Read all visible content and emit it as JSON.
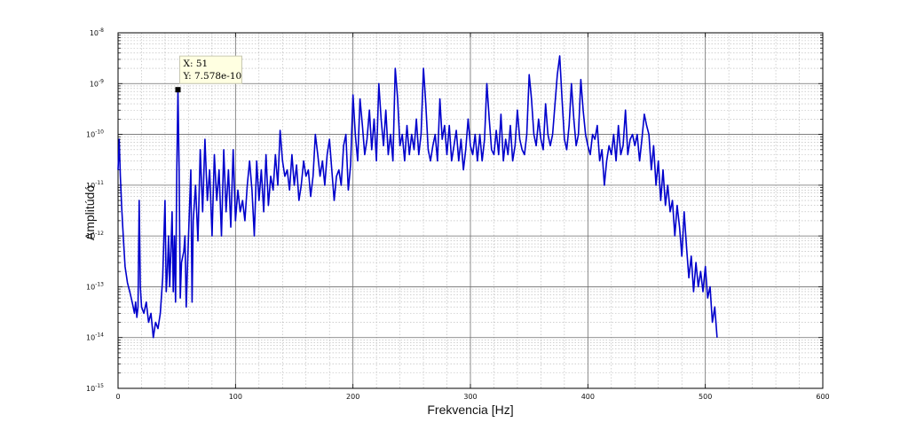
{
  "chart_data": {
    "type": "line",
    "xlabel": "Frekvencia [Hz]",
    "ylabel": "Amplitúdó",
    "xlim": [
      0,
      600
    ],
    "ylim": [
      1e-15,
      1e-08
    ],
    "yscale": "log",
    "grid": true,
    "minor_grid": true,
    "x_ticks": [
      "0",
      "100",
      "200",
      "300",
      "400",
      "500",
      "600"
    ],
    "y_ticks": [
      {
        "base": "10",
        "exp": "-15"
      },
      {
        "base": "10",
        "exp": "-14"
      },
      {
        "base": "10",
        "exp": "-13"
      },
      {
        "base": "10",
        "exp": "-12"
      },
      {
        "base": "10",
        "exp": "-11"
      },
      {
        "base": "10",
        "exp": "-10"
      },
      {
        "base": "10",
        "exp": "-9"
      },
      {
        "base": "10",
        "exp": "-8"
      }
    ],
    "series": [
      {
        "color": "#0000cc",
        "points": [
          [
            0,
            2e-11
          ],
          [
            1,
            8e-11
          ],
          [
            2,
            1.5e-11
          ],
          [
            3,
            4e-12
          ],
          [
            4,
            1.5e-12
          ],
          [
            5,
            6e-13
          ],
          [
            6,
            2.5e-13
          ],
          [
            8,
            1.2e-13
          ],
          [
            10,
            8e-14
          ],
          [
            12,
            5e-14
          ],
          [
            14,
            3e-14
          ],
          [
            15,
            5e-14
          ],
          [
            16,
            2.5e-14
          ],
          [
            17,
            4e-14
          ],
          [
            18,
            5e-12
          ],
          [
            19,
            1e-13
          ],
          [
            20,
            4e-14
          ],
          [
            22,
            3e-14
          ],
          [
            24,
            5e-14
          ],
          [
            26,
            2e-14
          ],
          [
            28,
            3e-14
          ],
          [
            30,
            1e-14
          ],
          [
            32,
            2e-14
          ],
          [
            34,
            1.5e-14
          ],
          [
            36,
            3e-14
          ],
          [
            38,
            1.5e-13
          ],
          [
            40,
            5e-12
          ],
          [
            41,
            8e-14
          ],
          [
            42,
            2e-13
          ],
          [
            43,
            1e-12
          ],
          [
            44,
            1e-13
          ],
          [
            46,
            3e-12
          ],
          [
            47,
            8e-14
          ],
          [
            48,
            1e-12
          ],
          [
            49,
            5e-14
          ],
          [
            50,
            2e-11
          ],
          [
            51,
            7.578e-10
          ],
          [
            52,
            2e-11
          ],
          [
            53,
            6e-14
          ],
          [
            54,
            3e-13
          ],
          [
            56,
            5e-13
          ],
          [
            57,
            1e-12
          ],
          [
            58,
            4e-14
          ],
          [
            60,
            1e-12
          ],
          [
            62,
            2e-11
          ],
          [
            63,
            5e-14
          ],
          [
            64,
            2e-12
          ],
          [
            66,
            1e-11
          ],
          [
            68,
            8e-13
          ],
          [
            70,
            5e-11
          ],
          [
            72,
            3e-12
          ],
          [
            74,
            8e-11
          ],
          [
            76,
            5e-12
          ],
          [
            78,
            2e-11
          ],
          [
            80,
            1e-12
          ],
          [
            82,
            4e-11
          ],
          [
            84,
            5e-12
          ],
          [
            86,
            2e-11
          ],
          [
            88,
            1e-12
          ],
          [
            90,
            5e-11
          ],
          [
            92,
            3e-12
          ],
          [
            94,
            2e-11
          ],
          [
            96,
            1.5e-12
          ],
          [
            98,
            5e-11
          ],
          [
            100,
            2e-12
          ],
          [
            102,
            8e-12
          ],
          [
            104,
            3e-12
          ],
          [
            106,
            5e-12
          ],
          [
            108,
            2e-12
          ],
          [
            110,
            1e-11
          ],
          [
            112,
            3e-11
          ],
          [
            114,
            8e-12
          ],
          [
            116,
            1e-12
          ],
          [
            118,
            3e-11
          ],
          [
            120,
            5e-12
          ],
          [
            122,
            2e-11
          ],
          [
            124,
            3e-12
          ],
          [
            126,
            4e-11
          ],
          [
            128,
            4e-12
          ],
          [
            130,
            1.5e-11
          ],
          [
            132,
            8e-12
          ],
          [
            134,
            4e-11
          ],
          [
            136,
            1e-11
          ],
          [
            138,
            1.2e-10
          ],
          [
            140,
            3e-11
          ],
          [
            142,
            1.5e-11
          ],
          [
            144,
            2e-11
          ],
          [
            146,
            8e-12
          ],
          [
            148,
            4e-11
          ],
          [
            150,
            1e-11
          ],
          [
            152,
            2.5e-11
          ],
          [
            154,
            5e-12
          ],
          [
            156,
            1e-11
          ],
          [
            158,
            3e-11
          ],
          [
            160,
            1.5e-11
          ],
          [
            162,
            2e-11
          ],
          [
            164,
            6e-12
          ],
          [
            166,
            1.5e-11
          ],
          [
            168,
            1e-10
          ],
          [
            170,
            4e-11
          ],
          [
            172,
            1.5e-11
          ],
          [
            174,
            3e-11
          ],
          [
            176,
            1e-11
          ],
          [
            178,
            4e-11
          ],
          [
            180,
            8e-11
          ],
          [
            182,
            2e-11
          ],
          [
            184,
            5e-12
          ],
          [
            186,
            1.5e-11
          ],
          [
            188,
            2e-11
          ],
          [
            190,
            1e-11
          ],
          [
            192,
            6e-11
          ],
          [
            194,
            1e-10
          ],
          [
            196,
            8e-12
          ],
          [
            198,
            2.5e-11
          ],
          [
            200,
            6e-10
          ],
          [
            202,
            1e-10
          ],
          [
            204,
            3e-11
          ],
          [
            206,
            5e-10
          ],
          [
            208,
            1.5e-10
          ],
          [
            210,
            4e-11
          ],
          [
            212,
            8e-11
          ],
          [
            214,
            3e-10
          ],
          [
            216,
            5e-11
          ],
          [
            218,
            2e-10
          ],
          [
            220,
            3e-11
          ],
          [
            222,
            1e-09
          ],
          [
            224,
            2e-10
          ],
          [
            226,
            6e-11
          ],
          [
            228,
            3e-10
          ],
          [
            230,
            4e-11
          ],
          [
            232,
            1e-10
          ],
          [
            234,
            3e-11
          ],
          [
            236,
            2e-09
          ],
          [
            238,
            5e-10
          ],
          [
            240,
            6e-11
          ],
          [
            242,
            1e-10
          ],
          [
            244,
            3e-11
          ],
          [
            246,
            1.5e-10
          ],
          [
            248,
            4e-11
          ],
          [
            250,
            1e-10
          ],
          [
            252,
            5e-11
          ],
          [
            254,
            2e-10
          ],
          [
            256,
            4e-11
          ],
          [
            258,
            1e-10
          ],
          [
            260,
            2e-09
          ],
          [
            262,
            4e-10
          ],
          [
            264,
            5e-11
          ],
          [
            266,
            3e-11
          ],
          [
            268,
            6e-11
          ],
          [
            270,
            1e-10
          ],
          [
            272,
            3e-11
          ],
          [
            274,
            5e-10
          ],
          [
            276,
            8e-11
          ],
          [
            278,
            1.5e-10
          ],
          [
            280,
            4e-11
          ],
          [
            282,
            1.5e-10
          ],
          [
            284,
            3e-11
          ],
          [
            286,
            6e-11
          ],
          [
            288,
            1.2e-10
          ],
          [
            290,
            3e-11
          ],
          [
            292,
            8e-11
          ],
          [
            294,
            2e-11
          ],
          [
            296,
            5e-11
          ],
          [
            298,
            2e-10
          ],
          [
            300,
            6e-11
          ],
          [
            302,
            4e-11
          ],
          [
            304,
            1e-10
          ],
          [
            306,
            3e-11
          ],
          [
            308,
            1e-10
          ],
          [
            310,
            3e-11
          ],
          [
            312,
            8e-11
          ],
          [
            314,
            1e-09
          ],
          [
            316,
            2e-10
          ],
          [
            318,
            5e-11
          ],
          [
            320,
            4e-11
          ],
          [
            322,
            1.2e-10
          ],
          [
            324,
            4e-11
          ],
          [
            326,
            2.5e-10
          ],
          [
            328,
            3e-11
          ],
          [
            330,
            8e-11
          ],
          [
            332,
            4e-11
          ],
          [
            334,
            1.5e-10
          ],
          [
            336,
            3e-11
          ],
          [
            338,
            6e-11
          ],
          [
            340,
            3e-10
          ],
          [
            342,
            8e-11
          ],
          [
            344,
            5e-11
          ],
          [
            346,
            4e-11
          ],
          [
            348,
            1e-10
          ],
          [
            350,
            1.5e-09
          ],
          [
            352,
            5e-10
          ],
          [
            354,
            1e-10
          ],
          [
            356,
            6e-11
          ],
          [
            358,
            2e-10
          ],
          [
            360,
            8e-11
          ],
          [
            362,
            5e-11
          ],
          [
            364,
            4e-10
          ],
          [
            366,
            1e-10
          ],
          [
            368,
            6e-11
          ],
          [
            370,
            1e-10
          ],
          [
            372,
            4e-10
          ],
          [
            374,
            1.5e-09
          ],
          [
            376,
            3.5e-09
          ],
          [
            378,
            5e-10
          ],
          [
            380,
            8e-11
          ],
          [
            382,
            5e-11
          ],
          [
            384,
            1.5e-10
          ],
          [
            386,
            1e-09
          ],
          [
            388,
            2e-10
          ],
          [
            390,
            6e-11
          ],
          [
            392,
            1e-10
          ],
          [
            394,
            1.2e-09
          ],
          [
            396,
            3e-10
          ],
          [
            398,
            1e-10
          ],
          [
            400,
            6e-11
          ],
          [
            402,
            4e-11
          ],
          [
            404,
            1e-10
          ],
          [
            406,
            8e-11
          ],
          [
            408,
            1.5e-10
          ],
          [
            410,
            3e-11
          ],
          [
            412,
            5e-11
          ],
          [
            414,
            1e-11
          ],
          [
            416,
            3e-11
          ],
          [
            418,
            6e-11
          ],
          [
            420,
            4e-11
          ],
          [
            422,
            1e-10
          ],
          [
            424,
            3e-11
          ],
          [
            426,
            1.5e-10
          ],
          [
            428,
            4e-11
          ],
          [
            430,
            6e-11
          ],
          [
            432,
            3e-10
          ],
          [
            434,
            4e-11
          ],
          [
            436,
            8e-11
          ],
          [
            438,
            1e-10
          ],
          [
            440,
            6e-11
          ],
          [
            442,
            1e-10
          ],
          [
            444,
            3e-11
          ],
          [
            446,
            8e-11
          ],
          [
            448,
            2.5e-10
          ],
          [
            450,
            1.5e-10
          ],
          [
            452,
            1e-10
          ],
          [
            454,
            2e-11
          ],
          [
            456,
            6e-11
          ],
          [
            458,
            1e-11
          ],
          [
            460,
            3e-11
          ],
          [
            462,
            5e-12
          ],
          [
            464,
            2e-11
          ],
          [
            466,
            4e-12
          ],
          [
            468,
            1e-11
          ],
          [
            470,
            3e-12
          ],
          [
            472,
            5e-12
          ],
          [
            474,
            1e-12
          ],
          [
            476,
            4e-12
          ],
          [
            478,
            1.5e-12
          ],
          [
            480,
            4e-13
          ],
          [
            482,
            3e-12
          ],
          [
            484,
            6e-13
          ],
          [
            486,
            1.5e-13
          ],
          [
            488,
            4e-13
          ],
          [
            490,
            8e-14
          ],
          [
            492,
            3e-13
          ],
          [
            494,
            1e-13
          ],
          [
            496,
            2e-13
          ],
          [
            498,
            8e-14
          ],
          [
            500,
            2.5e-13
          ],
          [
            502,
            6e-14
          ],
          [
            504,
            1e-13
          ],
          [
            506,
            2e-14
          ],
          [
            508,
            4e-14
          ],
          [
            510,
            1e-14
          ]
        ]
      }
    ],
    "datatip": {
      "x": 51,
      "y": 7.578e-10,
      "x_text": "X: 51",
      "y_text": "Y: 7.578e-10"
    }
  }
}
